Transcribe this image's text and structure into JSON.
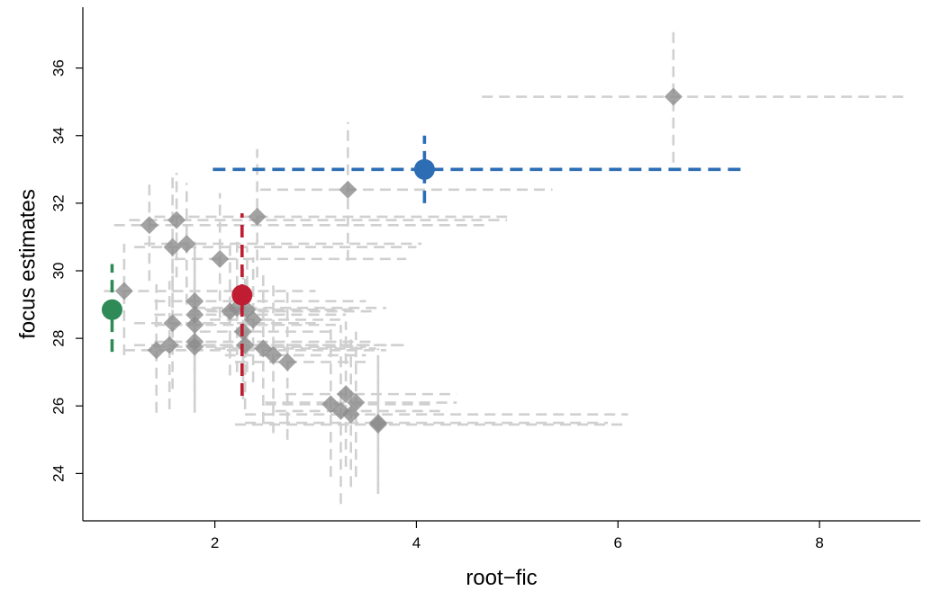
{
  "chart_data": {
    "type": "scatter",
    "title": "",
    "xlabel": "root−fic",
    "ylabel": "focus estimates",
    "xlim": [
      0.69,
      9.0
    ],
    "ylim": [
      22.6,
      37.8
    ],
    "x_ticks": [
      2,
      4,
      6,
      8
    ],
    "x_tick_labels": [
      "2",
      "4",
      "6",
      "8"
    ],
    "y_ticks": [
      24,
      26,
      28,
      30,
      32,
      34,
      36
    ],
    "y_tick_labels": [
      "24",
      "26",
      "28",
      "30",
      "32",
      "34",
      "36"
    ],
    "grid": false,
    "legend": "none",
    "colors": {
      "gray_point": "#8c8c8c",
      "gray_interval": "#d0d0d0",
      "blue": "#2c6db4",
      "red": "#c01c32",
      "green": "#2e8b57"
    },
    "series": [
      {
        "marker": "diamond",
        "color": "#8c8c8c",
        "points": [
          {
            "x": 6.55,
            "y": 35.15,
            "xlo": 4.65,
            "xhi": 8.85,
            "ylo": 33.2,
            "yhi": 37.1
          },
          {
            "x": 3.32,
            "y": 32.4,
            "xlo": 2.45,
            "xhi": 5.35,
            "ylo": 30.3,
            "yhi": 34.4
          },
          {
            "x": 1.35,
            "y": 31.35,
            "xlo": 1.0,
            "xhi": 4.7,
            "ylo": 29.7,
            "yhi": 32.7
          },
          {
            "x": 1.62,
            "y": 31.5,
            "xlo": 1.15,
            "xhi": 4.9,
            "ylo": 29.8,
            "yhi": 32.9
          },
          {
            "x": 2.42,
            "y": 31.6,
            "xlo": 1.4,
            "xhi": 4.9,
            "ylo": 29.8,
            "yhi": 33.6
          },
          {
            "x": 1.58,
            "y": 30.7,
            "xlo": 1.2,
            "xhi": 4.0,
            "ylo": 28.9,
            "yhi": 32.8
          },
          {
            "x": 1.72,
            "y": 30.8,
            "xlo": 1.3,
            "xhi": 4.05,
            "ylo": 29.0,
            "yhi": 32.6
          },
          {
            "x": 2.05,
            "y": 30.35,
            "xlo": 1.6,
            "xhi": 3.9,
            "ylo": 28.6,
            "yhi": 32.3
          },
          {
            "x": 1.1,
            "y": 29.4,
            "xlo": 0.9,
            "xhi": 3.0,
            "ylo": 27.5,
            "yhi": 30.8
          },
          {
            "x": 1.8,
            "y": 29.1,
            "xlo": 1.4,
            "xhi": 3.5,
            "ylo": 27.0,
            "yhi": 31.0
          },
          {
            "x": 1.8,
            "y": 28.7,
            "xlo": 1.4,
            "xhi": 3.3,
            "ylo": 26.8,
            "yhi": 30.6
          },
          {
            "x": 1.8,
            "y": 28.4,
            "xlo": 1.4,
            "xhi": 3.2,
            "ylo": 26.4,
            "yhi": 30.3
          },
          {
            "x": 1.58,
            "y": 28.45,
            "xlo": 1.2,
            "xhi": 3.0,
            "ylo": 26.5,
            "yhi": 30.4
          },
          {
            "x": 2.15,
            "y": 28.8,
            "xlo": 1.75,
            "xhi": 3.6,
            "ylo": 26.9,
            "yhi": 30.8
          },
          {
            "x": 2.22,
            "y": 28.9,
            "xlo": 1.8,
            "xhi": 3.7,
            "ylo": 27.0,
            "yhi": 30.9
          },
          {
            "x": 2.32,
            "y": 28.85,
            "xlo": 1.9,
            "xhi": 3.4,
            "ylo": 27.0,
            "yhi": 30.7
          },
          {
            "x": 2.38,
            "y": 28.55,
            "xlo": 1.95,
            "xhi": 3.3,
            "ylo": 26.7,
            "yhi": 30.4
          },
          {
            "x": 2.28,
            "y": 28.2,
            "xlo": 1.85,
            "xhi": 3.2,
            "ylo": 26.2,
            "yhi": 30.2
          },
          {
            "x": 1.42,
            "y": 27.65,
            "xlo": 1.1,
            "xhi": 3.7,
            "ylo": 25.8,
            "yhi": 29.6
          },
          {
            "x": 1.55,
            "y": 27.8,
            "xlo": 1.2,
            "xhi": 3.8,
            "ylo": 25.9,
            "yhi": 29.7
          },
          {
            "x": 1.8,
            "y": 27.9,
            "xlo": 1.4,
            "xhi": 3.6,
            "ylo": 26.0,
            "yhi": 29.8
          },
          {
            "x": 1.8,
            "y": 27.75,
            "xlo": 1.4,
            "xhi": 3.5,
            "ylo": 25.8,
            "yhi": 29.7
          },
          {
            "x": 2.3,
            "y": 27.8,
            "xlo": 1.9,
            "xhi": 3.9,
            "ylo": 25.9,
            "yhi": 29.8
          },
          {
            "x": 2.48,
            "y": 27.7,
            "xlo": 2.0,
            "xhi": 3.6,
            "ylo": 25.5,
            "yhi": 29.9
          },
          {
            "x": 2.58,
            "y": 27.5,
            "xlo": 2.1,
            "xhi": 3.5,
            "ylo": 25.2,
            "yhi": 29.6
          },
          {
            "x": 2.72,
            "y": 27.3,
            "xlo": 2.2,
            "xhi": 3.5,
            "ylo": 25.0,
            "yhi": 29.4
          },
          {
            "x": 3.15,
            "y": 26.05,
            "xlo": 2.5,
            "xhi": 4.2,
            "ylo": 23.9,
            "yhi": 28.3
          },
          {
            "x": 3.25,
            "y": 25.85,
            "xlo": 2.6,
            "xhi": 4.3,
            "ylo": 23.1,
            "yhi": 28.4
          },
          {
            "x": 3.3,
            "y": 26.35,
            "xlo": 2.7,
            "xhi": 4.4,
            "ylo": 24.2,
            "yhi": 28.5
          },
          {
            "x": 3.4,
            "y": 26.1,
            "xlo": 2.5,
            "xhi": 4.4,
            "ylo": 23.9,
            "yhi": 28.2
          },
          {
            "x": 3.35,
            "y": 25.75,
            "xlo": 2.3,
            "xhi": 6.1,
            "ylo": 23.6,
            "yhi": 28.1
          },
          {
            "x": 3.62,
            "y": 25.5,
            "xlo": 2.3,
            "xhi": 5.9,
            "ylo": 23.4,
            "yhi": 27.5
          },
          {
            "x": 3.62,
            "y": 25.45,
            "xlo": 2.2,
            "xhi": 6.1,
            "ylo": 23.6,
            "yhi": 27.7
          }
        ]
      },
      {
        "marker": "circle",
        "color": "#2c6db4",
        "points": [
          {
            "x": 4.08,
            "y": 33.0,
            "xlo": 1.98,
            "xhi": 7.28,
            "ylo": 32.0,
            "yhi": 34.0
          }
        ]
      },
      {
        "marker": "circle",
        "color": "#c01c32",
        "points": [
          {
            "x": 2.27,
            "y": 29.28,
            "xlo": 2.27,
            "xhi": 2.27,
            "ylo": 26.3,
            "yhi": 31.7
          }
        ]
      },
      {
        "marker": "circle",
        "color": "#2e8b57",
        "points": [
          {
            "x": 0.98,
            "y": 28.85,
            "xlo": 0.98,
            "xhi": 0.98,
            "ylo": 27.6,
            "yhi": 30.2
          }
        ]
      }
    ]
  }
}
